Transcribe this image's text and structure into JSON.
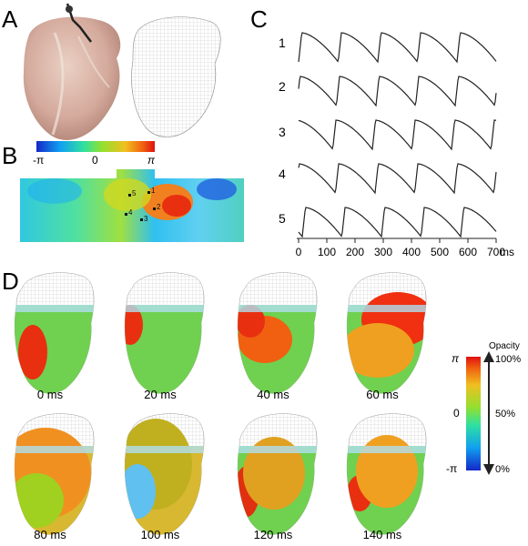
{
  "panel_labels": [
    "A",
    "B",
    "C",
    "D"
  ],
  "phase_bar": {
    "labels": [
      "-π",
      "0",
      "π"
    ]
  },
  "phase_map_points": [
    "1",
    "2",
    "3",
    "4",
    "5"
  ],
  "traces": {
    "row_labels": [
      "1",
      "2",
      "3",
      "4",
      "5"
    ],
    "axis": {
      "ticks": [
        "0",
        "100",
        "200",
        "300",
        "400",
        "500",
        "600",
        "700"
      ],
      "unit": "ms"
    }
  },
  "snapshots": [
    {
      "label": "0 ms"
    },
    {
      "label": "20 ms"
    },
    {
      "label": "40 ms"
    },
    {
      "label": "60 ms"
    },
    {
      "label": "80 ms"
    },
    {
      "label": "100 ms"
    },
    {
      "label": "120 ms"
    },
    {
      "label": "140 ms"
    }
  ],
  "colorbar": {
    "title": "Opacity",
    "phase_labels": [
      "π",
      "0",
      "-π"
    ],
    "opacity_labels": [
      "100%",
      "50%",
      "0%"
    ]
  },
  "colors": {
    "phase_low": "#1020c8",
    "phase_mid": "#40d040",
    "phase_high": "#e02010",
    "heart_tissue": "#d8b4a8"
  }
}
